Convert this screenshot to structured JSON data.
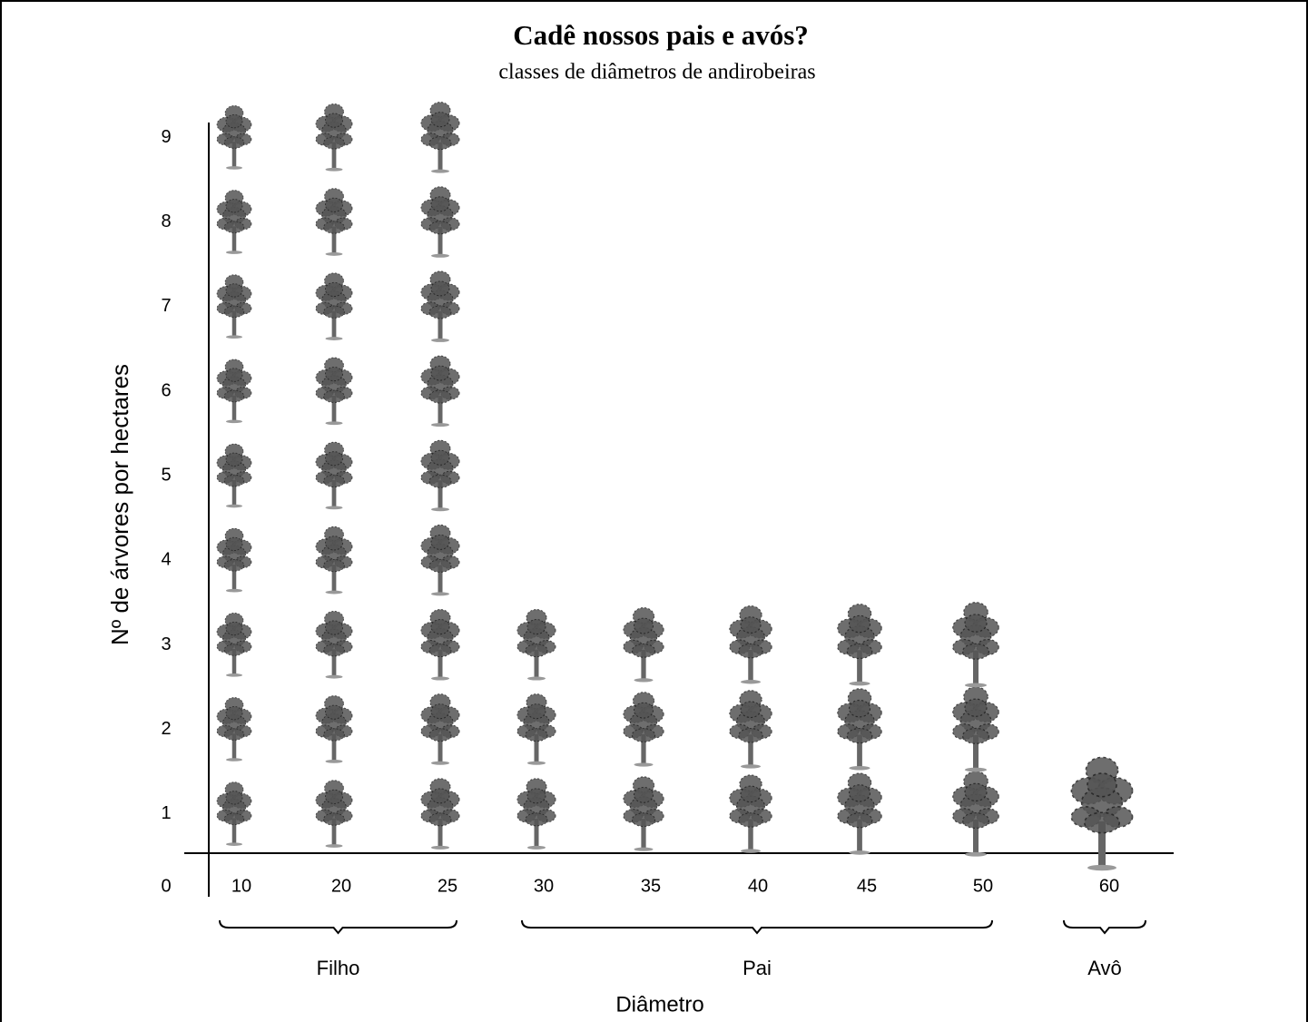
{
  "chart_data": {
    "type": "pictograph",
    "title": "Cadê nossos pais e avós?",
    "subtitle": "classes de diâmetros de andirobeiras",
    "x_label": "Diâmetro",
    "y_label": "Nº de árvores por hectares",
    "categories": [
      "10",
      "20",
      "25",
      "30",
      "35",
      "40",
      "45",
      "50",
      "60"
    ],
    "values": [
      9,
      9,
      9,
      3,
      3,
      3,
      3,
      3,
      1
    ],
    "color": "#555555",
    "ylim": [
      0,
      9.2
    ],
    "yticks": [
      0,
      1,
      2,
      3,
      4,
      5,
      6,
      7,
      8,
      9
    ],
    "groups": [
      {
        "label": "Filho",
        "categories": [
          "10",
          "20",
          "25"
        ]
      },
      {
        "label": "Pai",
        "categories": [
          "30",
          "35",
          "40",
          "45",
          "50"
        ]
      },
      {
        "label": "Avô",
        "categories": [
          "60"
        ]
      }
    ]
  }
}
